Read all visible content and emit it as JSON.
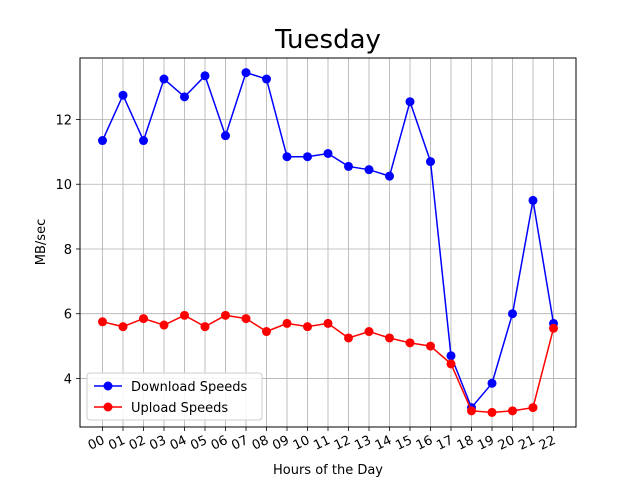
{
  "chart_data": {
    "type": "line",
    "title": "Tuesday",
    "xlabel": "Hours of the Day",
    "ylabel": "MB/sec",
    "categories": [
      "00",
      "01",
      "02",
      "03",
      "04",
      "05",
      "06",
      "07",
      "08",
      "09",
      "10",
      "11",
      "12",
      "13",
      "14",
      "15",
      "16",
      "17",
      "18",
      "19",
      "20",
      "21",
      "22"
    ],
    "ylim": [
      2.5,
      13.9
    ],
    "yticks": [
      4,
      6,
      8,
      10,
      12
    ],
    "grid": true,
    "legend_position": "lower-left",
    "series": [
      {
        "name": "Download Speeds",
        "color": "#0000ff",
        "values": [
          11.35,
          12.75,
          11.35,
          13.25,
          12.7,
          13.35,
          11.5,
          13.45,
          13.25,
          10.85,
          10.85,
          10.95,
          10.55,
          10.45,
          10.25,
          12.55,
          10.7,
          4.7,
          3.1,
          3.85,
          6.0,
          9.5,
          5.7
        ]
      },
      {
        "name": "Upload Speeds",
        "color": "#ff0000",
        "values": [
          5.75,
          5.6,
          5.85,
          5.65,
          5.95,
          5.6,
          5.95,
          5.85,
          5.45,
          5.7,
          5.6,
          5.7,
          5.25,
          5.45,
          5.25,
          5.1,
          5.0,
          4.45,
          3.0,
          2.95,
          3.0,
          3.1,
          5.55
        ]
      }
    ]
  }
}
